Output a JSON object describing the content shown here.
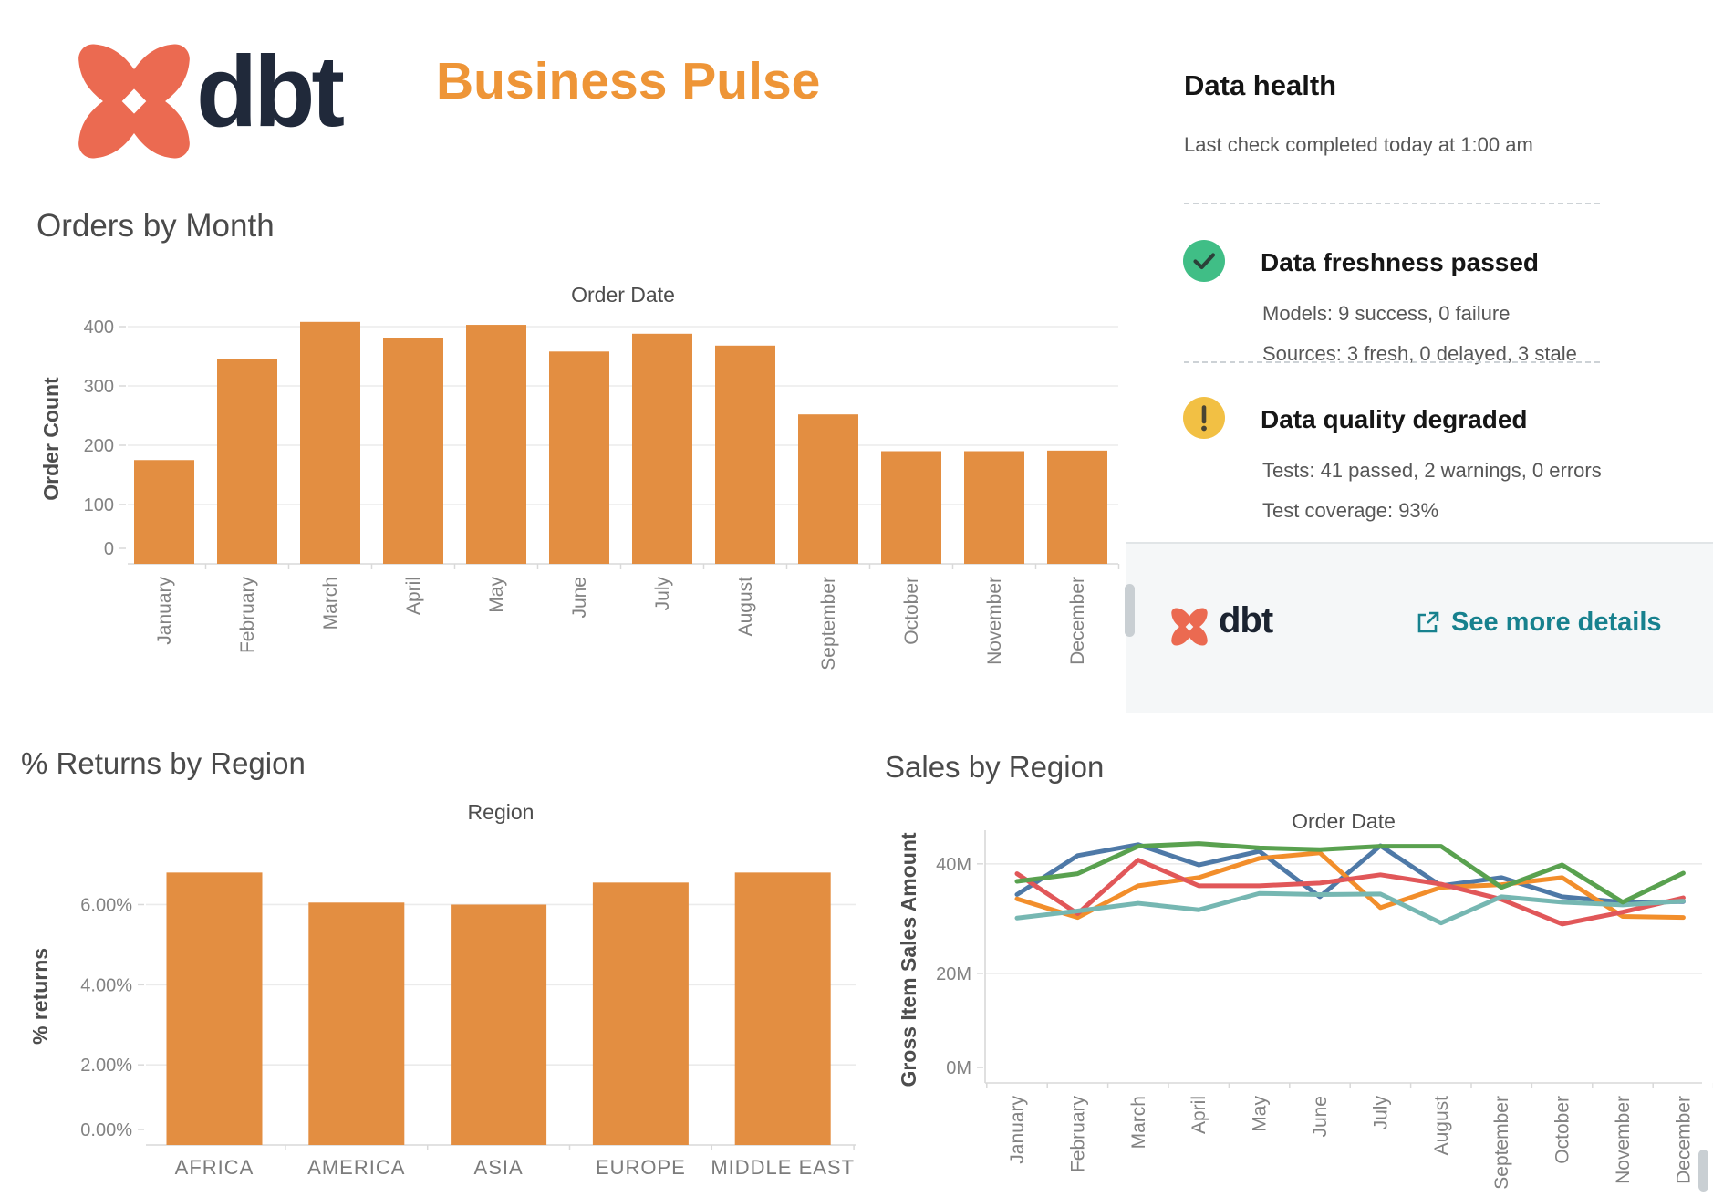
{
  "header": {
    "brand_wordmark": "dbt",
    "title": "Business Pulse"
  },
  "data_health": {
    "title": "Data health",
    "last_check": "Last check completed today at 1:00 am",
    "freshness": {
      "status_title": "Data freshness passed",
      "models": "Models: 9 success, 0 failure",
      "sources": "Sources: 3 fresh, 0 delayed, 3 stale"
    },
    "quality": {
      "status_title": "Data quality degraded",
      "tests": "Tests: 41 passed, 2 warnings, 0 errors",
      "coverage": "Test coverage: 93%"
    },
    "footer": {
      "brand_wordmark": "dbt",
      "link_label": "See more details"
    },
    "colors": {
      "success": "#40BE86",
      "warning": "#F2C044",
      "link": "#17818E"
    }
  },
  "brand_colors": {
    "coral": "#EB6A51",
    "navy": "#20293A",
    "title_orange": "#EE9537"
  },
  "chart_data": [
    {
      "id": "orders",
      "type": "bar",
      "title": "Orders by Month",
      "axis_title": "Order Date",
      "ylabel": "Order Count",
      "categories": [
        "January",
        "February",
        "March",
        "April",
        "May",
        "June",
        "July",
        "August",
        "September",
        "October",
        "November",
        "December"
      ],
      "values": [
        175,
        345,
        408,
        380,
        403,
        358,
        388,
        368,
        252,
        190,
        190,
        191
      ],
      "ylim": [
        0,
        420
      ],
      "yticks": [
        {
          "v": 0,
          "label": "0"
        },
        {
          "v": 100,
          "label": "100"
        },
        {
          "v": 200,
          "label": "200"
        },
        {
          "v": 300,
          "label": "300"
        },
        {
          "v": 400,
          "label": "400"
        }
      ],
      "bar_color": "#E38E41",
      "grid": true,
      "x_label_rotation": -90
    },
    {
      "id": "returns",
      "type": "bar",
      "title": "% Returns by Region",
      "axis_title": "Region",
      "ylabel": "% returns",
      "categories": [
        "AFRICA",
        "AMERICA",
        "ASIA",
        "EUROPE",
        "MIDDLE EAST"
      ],
      "values": [
        6.8,
        6.05,
        6.0,
        6.55,
        6.8
      ],
      "ylim": [
        0,
        7.4
      ],
      "yticks": [
        {
          "v": 0,
          "label": "0.00%"
        },
        {
          "v": 2,
          "label": "2.00%"
        },
        {
          "v": 4,
          "label": "4.00%"
        },
        {
          "v": 6,
          "label": "6.00%"
        }
      ],
      "bar_color": "#E38E41",
      "grid": true,
      "x_label_rotation": 0
    },
    {
      "id": "sales",
      "type": "line",
      "title": "Sales by Region",
      "axis_title": "Order Date",
      "ylabel": "Gross Item Sales Amount",
      "categories": [
        "January",
        "February",
        "March",
        "April",
        "May",
        "June",
        "July",
        "August",
        "September",
        "October",
        "November",
        "December"
      ],
      "series": [
        {
          "name": "series-blue",
          "color": "#4E79A7",
          "values": [
            34.4,
            41.5,
            43.5,
            39.8,
            42.3,
            34.0,
            43.3,
            36.0,
            37.5,
            34.0,
            33.0,
            33.1
          ]
        },
        {
          "name": "series-orange",
          "color": "#F28E2B",
          "values": [
            33.6,
            30.2,
            36.0,
            37.5,
            41.0,
            42.0,
            32.0,
            35.7,
            36.2,
            37.5,
            30.4,
            30.2
          ]
        },
        {
          "name": "series-red",
          "color": "#E15759",
          "values": [
            38.2,
            30.9,
            40.7,
            36.0,
            36.0,
            36.5,
            38.0,
            36.3,
            33.5,
            29.0,
            31.2,
            33.8
          ]
        },
        {
          "name": "series-teal",
          "color": "#76B7B2",
          "values": [
            30.1,
            31.4,
            32.8,
            31.6,
            34.6,
            34.4,
            34.5,
            29.2,
            34.0,
            33.0,
            32.5,
            33.2
          ]
        },
        {
          "name": "series-green",
          "color": "#59A14F",
          "values": [
            36.8,
            38.2,
            43.2,
            43.7,
            42.9,
            42.6,
            43.2,
            43.2,
            35.7,
            39.8,
            33.0,
            38.3
          ]
        }
      ],
      "ylim": [
        0,
        44.8
      ],
      "yticks": [
        {
          "v": 0,
          "label": "0M"
        },
        {
          "v": 20,
          "label": "20M"
        },
        {
          "v": 40,
          "label": "40M"
        }
      ],
      "grid": true,
      "legend": "none",
      "x_label_rotation": -90
    }
  ]
}
